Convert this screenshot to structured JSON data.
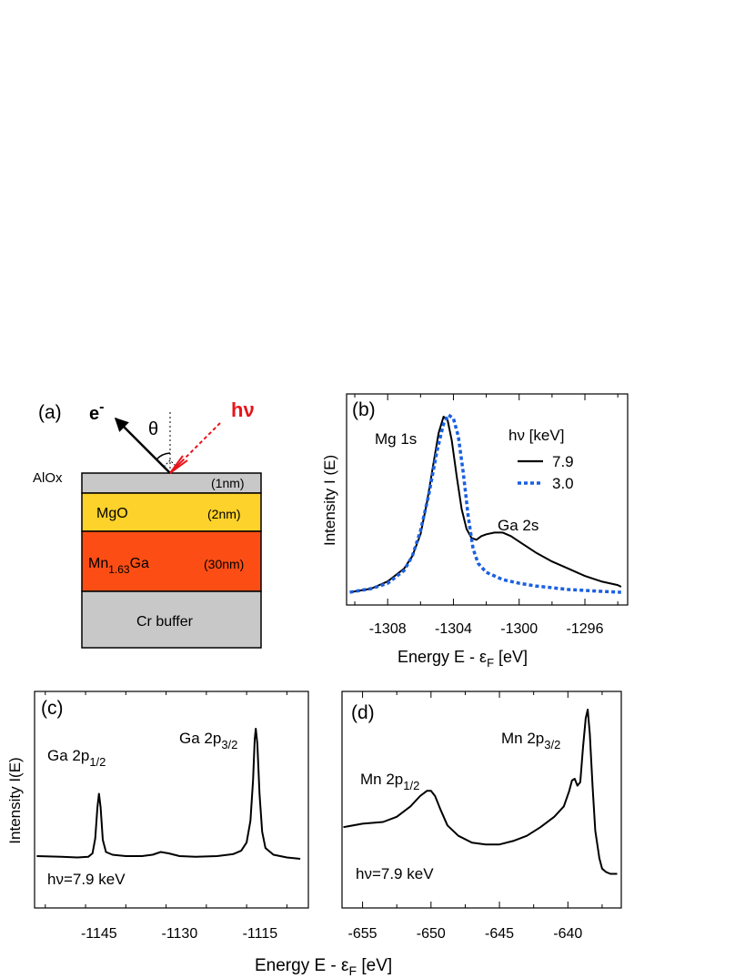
{
  "panel_a": {
    "label": "(a)",
    "electron": "e",
    "electron_sup": "-",
    "theta": "θ",
    "photon": "hν",
    "photon_color": "#e8141b",
    "layers": [
      {
        "name": "AlOx",
        "thickness": "(1nm)",
        "color": "#c8c8c8"
      },
      {
        "name": "MgO",
        "thickness": "(2nm)",
        "color": "#fdd22a"
      },
      {
        "name_main": "Mn",
        "name_sub": "1.63",
        "name_tail": "Ga",
        "thickness": "(30nm)",
        "color": "#fc4e14"
      },
      {
        "name": "Cr buffer",
        "thickness": "",
        "color": "#c8c8c8"
      }
    ]
  },
  "chart_data": [
    {
      "panel": "(b)",
      "type": "line",
      "xlabel_main": "Energy   E - ε",
      "xlabel_sub": "F",
      "xlabel_tail": " [eV]",
      "ylabel": "Intensity I (E)",
      "xlim": [
        -1310.5,
        -1293.4
      ],
      "ylim": [
        0,
        1.0
      ],
      "xticks": [
        -1308,
        -1304,
        -1300,
        -1296
      ],
      "xtick_labels": [
        "-1308",
        "-1304",
        "-1300",
        "-1296"
      ],
      "annotations": [
        "Mg 1s",
        "Ga 2s"
      ],
      "legend_title": "hν [keV]",
      "series": [
        {
          "name": "7.9",
          "style": "solid",
          "color": "#000000",
          "x": [
            -1310.3,
            -1309.0,
            -1308.0,
            -1307.0,
            -1306.5,
            -1306.0,
            -1305.6,
            -1305.2,
            -1304.9,
            -1304.6,
            -1304.35,
            -1304.1,
            -1303.8,
            -1303.5,
            -1303.2,
            -1302.9,
            -1302.6,
            -1302.3,
            -1302.0,
            -1301.5,
            -1301.0,
            -1300.5,
            -1300.0,
            -1299.0,
            -1298.0,
            -1297.0,
            -1296.0,
            -1295.0,
            -1294.0,
            -1293.8
          ],
          "y": [
            0.02,
            0.04,
            0.08,
            0.15,
            0.22,
            0.34,
            0.52,
            0.74,
            0.9,
            0.99,
            0.97,
            0.86,
            0.66,
            0.48,
            0.37,
            0.32,
            0.31,
            0.33,
            0.34,
            0.35,
            0.35,
            0.33,
            0.3,
            0.24,
            0.19,
            0.15,
            0.11,
            0.08,
            0.06,
            0.05
          ]
        },
        {
          "name": "3.0",
          "style": "dashed",
          "color": "#1a5fe0",
          "x": [
            -1310.3,
            -1309.0,
            -1308.0,
            -1307.0,
            -1306.5,
            -1306.0,
            -1305.5,
            -1305.0,
            -1304.6,
            -1304.3,
            -1304.0,
            -1303.7,
            -1303.4,
            -1303.1,
            -1302.8,
            -1302.5,
            -1302.0,
            -1301.0,
            -1300.0,
            -1299.0,
            -1298.0,
            -1297.0,
            -1296.0,
            -1295.0,
            -1293.8
          ],
          "y": [
            0.02,
            0.04,
            0.07,
            0.14,
            0.22,
            0.36,
            0.56,
            0.8,
            0.95,
            1.0,
            0.98,
            0.88,
            0.68,
            0.44,
            0.26,
            0.18,
            0.13,
            0.09,
            0.07,
            0.055,
            0.045,
            0.035,
            0.03,
            0.025,
            0.02
          ]
        }
      ]
    },
    {
      "panel": "(c)",
      "type": "line",
      "xlabel": "",
      "ylabel": "Intensity I(E)",
      "xlim": [
        -1157,
        -1106
      ],
      "ylim": [
        0,
        1.0
      ],
      "xticks": [
        -1145,
        -1130,
        -1115
      ],
      "xtick_labels": [
        "-1145",
        "-1130",
        "-1115"
      ],
      "annotations": [
        {
          "main": "Ga 2p",
          "sub": "1/2"
        },
        {
          "main": "Ga 2p",
          "sub": "3/2"
        },
        {
          "main": "hν=7.9 keV"
        }
      ],
      "series": [
        {
          "name": "7.9 keV",
          "style": "solid",
          "color": "#000000",
          "x": [
            -1156.6,
            -1152,
            -1149,
            -1147,
            -1146.2,
            -1145.7,
            -1145.3,
            -1145.0,
            -1144.7,
            -1144.3,
            -1143.7,
            -1142.5,
            -1140,
            -1137,
            -1135,
            -1133.5,
            -1132,
            -1130,
            -1127,
            -1123,
            -1120,
            -1118.5,
            -1117.5,
            -1116.8,
            -1116.3,
            -1116.0,
            -1115.8,
            -1115.5,
            -1115.1,
            -1114.6,
            -1114.0,
            -1112.5,
            -1110,
            -1107.5
          ],
          "y": [
            0.02,
            0.015,
            0.01,
            0.015,
            0.04,
            0.15,
            0.38,
            0.48,
            0.38,
            0.14,
            0.05,
            0.03,
            0.02,
            0.02,
            0.03,
            0.05,
            0.04,
            0.02,
            0.015,
            0.02,
            0.035,
            0.06,
            0.12,
            0.28,
            0.58,
            0.88,
            0.96,
            0.85,
            0.48,
            0.2,
            0.08,
            0.03,
            0.01,
            0.0
          ]
        }
      ]
    },
    {
      "panel": "(d)",
      "type": "line",
      "xlabel_main": "Energy   E - ε",
      "xlabel_sub": "F",
      "xlabel_tail": " [eV]",
      "xlim": [
        -656.5,
        -636.1
      ],
      "ylim": [
        0,
        1.0
      ],
      "xticks": [
        -655,
        -650,
        -645,
        -640
      ],
      "xtick_labels": [
        "-655",
        "-650",
        "-645",
        "-640"
      ],
      "annotations": [
        {
          "main": "Mn 2p",
          "sub": "1/2"
        },
        {
          "main": "Mn 2p",
          "sub": "3/2"
        },
        {
          "main": "hν=7.9 keV"
        }
      ],
      "series": [
        {
          "name": "7.9 keV",
          "style": "solid",
          "color": "#000000",
          "x": [
            -656.4,
            -655.0,
            -653.5,
            -652.5,
            -651.5,
            -650.8,
            -650.3,
            -650.0,
            -649.7,
            -649.3,
            -648.8,
            -648.0,
            -647.0,
            -646.0,
            -645.0,
            -644.0,
            -643.0,
            -642.0,
            -641.0,
            -640.3,
            -639.9,
            -639.7,
            -639.5,
            -639.3,
            -639.1,
            -638.9,
            -638.7,
            -638.55,
            -638.4,
            -638.2,
            -638.0,
            -637.7,
            -637.5,
            -637.2,
            -636.9,
            -636.4
          ],
          "y": [
            0.32,
            0.34,
            0.35,
            0.38,
            0.44,
            0.5,
            0.53,
            0.53,
            0.5,
            0.42,
            0.33,
            0.27,
            0.23,
            0.22,
            0.22,
            0.24,
            0.27,
            0.32,
            0.38,
            0.44,
            0.53,
            0.59,
            0.6,
            0.56,
            0.58,
            0.78,
            0.95,
            1.0,
            0.86,
            0.56,
            0.3,
            0.14,
            0.08,
            0.06,
            0.05,
            0.05
          ]
        }
      ]
    }
  ]
}
